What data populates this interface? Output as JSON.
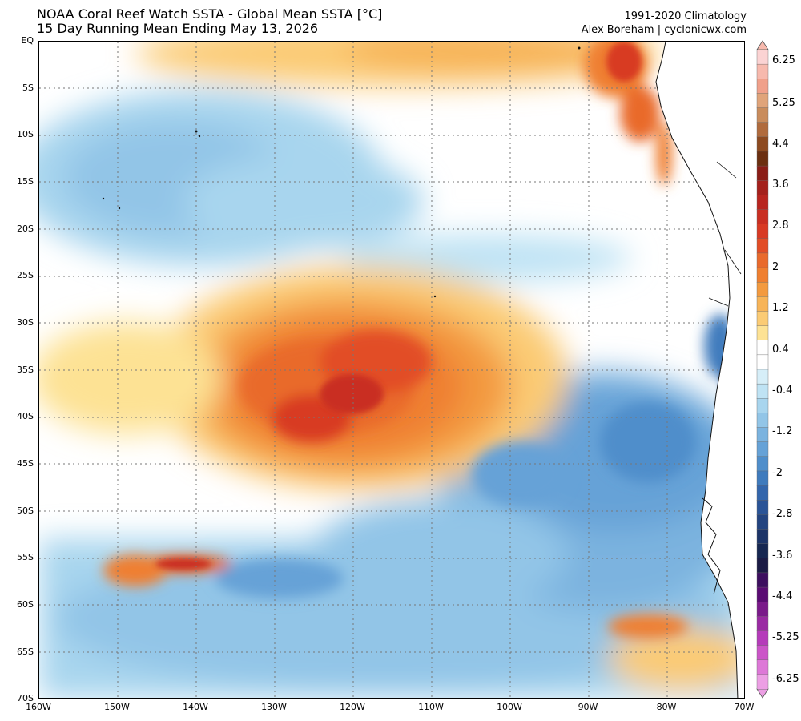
{
  "title": {
    "line1": "NOAA Coral Reef Watch SSTA - Global Mean SSTA [°C]",
    "line2": "15 Day Running Mean Ending May 13, 2026"
  },
  "credits": {
    "climatology": "1991-2020 Climatology",
    "author": "Alex Boreham | cyclonicwx.com"
  },
  "map": {
    "variable": "Sea Surface Temperature Anomaly",
    "units": "°C",
    "lat_labels": [
      "EQ",
      "5S",
      "10S",
      "15S",
      "20S",
      "25S",
      "30S",
      "35S",
      "40S",
      "45S",
      "50S",
      "55S",
      "60S",
      "65S",
      "70S"
    ],
    "lon_labels": [
      "160W",
      "150W",
      "140W",
      "130W",
      "120W",
      "110W",
      "100W",
      "90W",
      "80W",
      "70W"
    ],
    "features": [
      {
        "name": "central-warm-anomaly",
        "lat_range": [
          "25S",
          "48S"
        ],
        "lon_range": [
          "145W",
          "100W"
        ],
        "anomaly": "warm"
      },
      {
        "name": "equatorial-warm-band",
        "lat_range": [
          "EQ",
          "8S"
        ],
        "lon_range": [
          "140W",
          "80W"
        ],
        "anomaly": "warm"
      },
      {
        "name": "northwest-cool-region",
        "lat_range": [
          "5S",
          "25S"
        ],
        "lon_range": [
          "160W",
          "115W"
        ],
        "anomaly": "cool"
      },
      {
        "name": "southeast-cool-region",
        "lat_range": [
          "38S",
          "70S"
        ],
        "lon_range": [
          "120W",
          "72W"
        ],
        "anomaly": "cool"
      },
      {
        "name": "peru-coast-warm",
        "lat_range": [
          "EQ",
          "15S"
        ],
        "lon_range": [
          "85W",
          "75W"
        ],
        "anomaly": "warm"
      }
    ]
  },
  "colorbar": {
    "labels": [
      "6.25",
      "5.25",
      "4.4",
      "3.6",
      "2.8",
      "2",
      "1.2",
      "0.4",
      "-0.4",
      "-1.2",
      "-2",
      "-2.8",
      "-3.6",
      "-4.4",
      "-5.25",
      "-6.25"
    ],
    "colors_top_to_bottom": [
      "#fbd3d3",
      "#f7b9ad",
      "#f0a08a",
      "#e0a47a",
      "#c98c5c",
      "#b06b3d",
      "#8d4a20",
      "#6b2f10",
      "#8a1d16",
      "#a4211c",
      "#b8251f",
      "#c92f22",
      "#d83a24",
      "#e24d26",
      "#e96a2c",
      "#ef7f30",
      "#f39a3f",
      "#f7b458",
      "#fbcb74",
      "#fde294",
      "#ffffff",
      "#ffffff",
      "#d6eef8",
      "#bfe3f4",
      "#a8d5ee",
      "#92c5e7",
      "#7bb3df",
      "#66a2d7",
      "#4f8ecb",
      "#3f7bbd",
      "#3366ac",
      "#2a5497",
      "#234480",
      "#1c3468",
      "#162751",
      "#1b1b45",
      "#3d0f5f",
      "#5a0c73",
      "#7a1a8a",
      "#9a2aa3",
      "#b53bba",
      "#cb55c8",
      "#dd78d7",
      "#ec9fe4"
    ]
  }
}
